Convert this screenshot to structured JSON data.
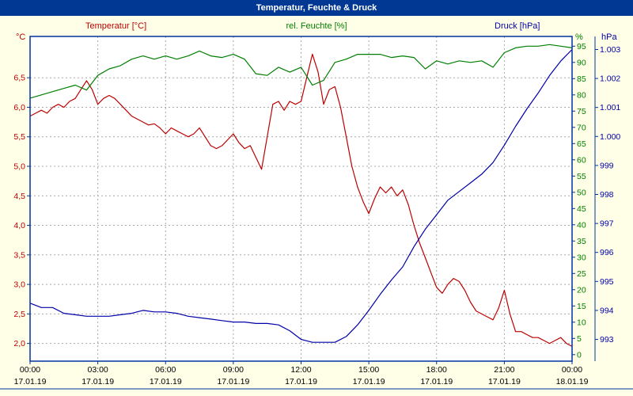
{
  "title": "Temperatur, Feuchte & Druck",
  "legend": {
    "temp": "Temperatur [°C]",
    "hum": "rel. Feuchte [%]",
    "press": "Druck [hPa]"
  },
  "units": {
    "temp": "°C",
    "hum": "%",
    "press": "hPa"
  },
  "colors": {
    "temp": "#BB0000",
    "hum": "#007F00",
    "press": "#0000A8",
    "frame": "#0033A0",
    "titlebar": "#003893",
    "background": "#FFFFE8",
    "plot_bg": "#FFFFFF",
    "grid": "#A8A8A8",
    "x_labels": "#000000"
  },
  "chart_data": {
    "type": "line",
    "title": "Temperatur, Feuchte & Druck",
    "grid": true,
    "x": {
      "min": 0,
      "max": 24,
      "unit": "hours",
      "ticks": [
        {
          "pos": 0,
          "time": "00:00",
          "date": "17.01.19"
        },
        {
          "pos": 3,
          "time": "03:00",
          "date": "17.01.19"
        },
        {
          "pos": 6,
          "time": "06:00",
          "date": "17.01.19"
        },
        {
          "pos": 9,
          "time": "09:00",
          "date": "17.01.19"
        },
        {
          "pos": 12,
          "time": "12:00",
          "date": "17.01.19"
        },
        {
          "pos": 15,
          "time": "15:00",
          "date": "17.01.19"
        },
        {
          "pos": 18,
          "time": "18:00",
          "date": "17.01.19"
        },
        {
          "pos": 21,
          "time": "21:00",
          "date": "17.01.19"
        },
        {
          "pos": 24,
          "time": "00:00",
          "date": "18.01.19"
        }
      ]
    },
    "y_axes": [
      {
        "id": "temp",
        "label": "Temperatur [°C]",
        "unit": "°C",
        "color": "#BB0000",
        "side": "left",
        "min": 1.7,
        "max": 7.2,
        "tick_values": [
          2.0,
          2.5,
          3.0,
          3.5,
          4.0,
          4.5,
          5.0,
          5.5,
          6.0,
          6.5
        ],
        "tick_labels": [
          "2,0",
          "2,5",
          "3,0",
          "3,5",
          "4,0",
          "4,5",
          "5,0",
          "5,5",
          "6,0",
          "6,5"
        ]
      },
      {
        "id": "hum",
        "label": "rel. Feuchte [%]",
        "unit": "%",
        "color": "#007F00",
        "side": "right",
        "min": -2,
        "max": 98,
        "tick_values": [
          0,
          5,
          10,
          15,
          20,
          25,
          30,
          35,
          40,
          45,
          50,
          55,
          60,
          65,
          70,
          75,
          80,
          85,
          90,
          95
        ],
        "tick_labels": [
          "0",
          "5",
          "10",
          "15",
          "20",
          "25",
          "30",
          "35",
          "40",
          "45",
          "50",
          "55",
          "60",
          "65",
          "70",
          "75",
          "80",
          "85",
          "90",
          "95"
        ]
      },
      {
        "id": "press",
        "label": "Druck [hPa]",
        "unit": "hPa",
        "color": "#0000A8",
        "side": "far-right",
        "min": 992.25,
        "max": 1003.45,
        "tick_values": [
          993,
          994,
          995,
          996,
          997,
          998,
          999,
          1000,
          1001,
          1002,
          1003
        ],
        "tick_labels": [
          "993",
          "994",
          "995",
          "996",
          "997",
          "998",
          "999",
          "1.000",
          "1.001",
          "1.002",
          "1.003"
        ]
      }
    ],
    "series": [
      {
        "name": "Temperatur [°C]",
        "axis": "temp",
        "x_start": 0,
        "x_step": 0.25,
        "values": [
          5.85,
          5.9,
          5.95,
          5.9,
          6.0,
          6.05,
          6.0,
          6.1,
          6.15,
          6.3,
          6.45,
          6.3,
          6.05,
          6.15,
          6.2,
          6.15,
          6.05,
          5.95,
          5.85,
          5.8,
          5.75,
          5.7,
          5.72,
          5.65,
          5.55,
          5.65,
          5.6,
          5.55,
          5.5,
          5.55,
          5.65,
          5.5,
          5.35,
          5.3,
          5.35,
          5.45,
          5.55,
          5.4,
          5.3,
          5.35,
          5.15,
          4.95,
          5.5,
          6.05,
          6.1,
          5.95,
          6.1,
          6.05,
          6.1,
          6.5,
          6.9,
          6.6,
          6.05,
          6.3,
          6.35,
          6.0,
          5.5,
          5.0,
          4.65,
          4.4,
          4.2,
          4.45,
          4.65,
          4.55,
          4.65,
          4.5,
          4.6,
          4.35,
          4.0,
          3.7,
          3.45,
          3.2,
          2.95,
          2.85,
          3.0,
          3.1,
          3.05,
          2.9,
          2.7,
          2.55,
          2.5,
          2.45,
          2.4,
          2.6,
          2.9,
          2.5,
          2.2,
          2.2,
          2.15,
          2.1,
          2.1,
          2.05,
          2.0,
          2.05,
          2.1,
          2.0,
          1.95
        ]
      },
      {
        "name": "rel. Feuchte [%]",
        "axis": "hum",
        "x_start": 0,
        "x_step": 0.5,
        "values": [
          79,
          80,
          81,
          82,
          83,
          81.5,
          86,
          88,
          89,
          91,
          92,
          91,
          92,
          91,
          92,
          93.5,
          92,
          91.5,
          92.5,
          91,
          86.5,
          86,
          88.5,
          87,
          88.5,
          83,
          84.5,
          90,
          91,
          92.5,
          92.5,
          92.5,
          91.5,
          92,
          91.5,
          88,
          90.5,
          89.5,
          90.5,
          90,
          90.5,
          88.5,
          93,
          94.5,
          95,
          95,
          95.5,
          95,
          94.5
        ]
      },
      {
        "name": "Druck [hPa]",
        "axis": "press",
        "x_start": 0,
        "x_step": 0.5,
        "values": [
          994.25,
          994.1,
          994.1,
          993.9,
          993.85,
          993.8,
          993.8,
          993.8,
          993.85,
          993.9,
          994.0,
          993.95,
          993.95,
          993.9,
          993.8,
          993.75,
          993.7,
          993.65,
          993.6,
          993.6,
          993.55,
          993.55,
          993.5,
          993.3,
          993.0,
          992.9,
          992.9,
          992.9,
          993.1,
          993.5,
          994.0,
          994.55,
          995.05,
          995.5,
          996.2,
          996.8,
          997.3,
          997.8,
          998.1,
          998.4,
          998.7,
          999.1,
          999.7,
          1000.35,
          1000.95,
          1001.5,
          1002.1,
          1002.6,
          1003.0
        ]
      }
    ]
  }
}
